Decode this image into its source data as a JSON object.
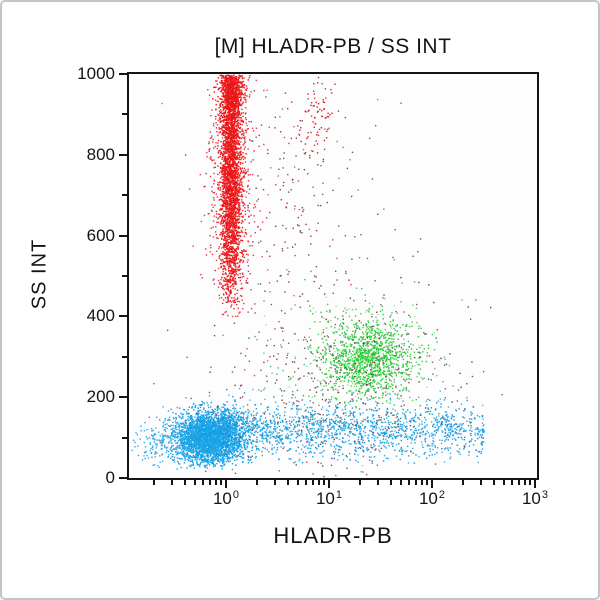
{
  "window": {
    "background": "#ffffff",
    "frame_border_color": "#c4c5cb"
  },
  "chart_data": {
    "type": "scatter",
    "subtype": "flow-cytometry-dot-plot",
    "title": "[M] HLADR-PB / SS INT",
    "xlabel": "HLADR-PB",
    "ylabel": "SS INT",
    "axis_color": "#141414",
    "x_scale": "log",
    "x_range_log10": [
      -0.942,
      3.02
    ],
    "x_ticks": [
      {
        "base": "10",
        "exp": 0
      },
      {
        "base": "10",
        "exp": 1
      },
      {
        "base": "10",
        "exp": 2
      },
      {
        "base": "10",
        "exp": 3
      }
    ],
    "y_scale": "linear",
    "y_range": [
      0,
      1000
    ],
    "y_major_ticks": [
      0,
      200,
      400,
      600,
      800,
      1000
    ],
    "y_tick_labels": [
      "0",
      "200",
      "400",
      "600",
      "800",
      "1000"
    ],
    "y_minor_ticks": [
      100,
      300,
      500,
      700,
      900
    ],
    "grid": false,
    "legend": "none",
    "populations": [
      {
        "name": "granulocytes-red-core",
        "color": "#ee1515",
        "count": 2400,
        "x": {
          "mean": 0.04,
          "sigma": 0.05
        },
        "y": {
          "mean": 760,
          "sigma": 170
        },
        "y_clip": [
          425,
          1000
        ]
      },
      {
        "name": "granulocytes-red-top",
        "color": "#ee1515",
        "count": 600,
        "x": {
          "mean": 0.05,
          "sigma": 0.06
        },
        "y": {
          "mean": 965,
          "sigma": 45
        },
        "y_clip": [
          840,
          1000
        ]
      },
      {
        "name": "granulocytes-red-halo",
        "color": "#e52030",
        "count": 700,
        "alpha": 0.9,
        "x": {
          "mean": 0.04,
          "sigma": 0.105
        },
        "y": {
          "mean": 720,
          "sigma": 195
        },
        "y_clip": [
          400,
          1000
        ]
      },
      {
        "name": "red-satellite-cluster",
        "color": "#e01a25",
        "count": 70,
        "x": {
          "mean": 0.86,
          "sigma": 0.09
        },
        "y": {
          "mean": 885,
          "sigma": 55
        }
      },
      {
        "name": "red-sparse-mid",
        "colors": [
          "#e01a25",
          "#8a1a28",
          "#5a3038"
        ],
        "count": 130,
        "alpha": 0.85,
        "x": {
          "mean": 0.5,
          "sigma": 0.33
        },
        "y": {
          "mean": 740,
          "sigma": 190
        }
      },
      {
        "name": "monocytes-green-core",
        "color": "#2ccc3a",
        "count": 1000,
        "x": {
          "mean": 1.37,
          "sigma": 0.21
        },
        "y": {
          "mean": 297,
          "sigma": 46
        },
        "y_clip": [
          170,
          430
        ]
      },
      {
        "name": "monocytes-green-halo",
        "colors": [
          "#2ccc3a",
          "#7fe08a",
          "#24b933"
        ],
        "count": 330,
        "alpha": 0.8,
        "x": {
          "mean": 1.37,
          "sigma": 0.36
        },
        "y": {
          "mean": 300,
          "sigma": 75
        }
      },
      {
        "name": "lymphocytes-blue-core",
        "color": "#15a0e6",
        "count": 3000,
        "x": {
          "mean": -0.17,
          "sigma": 0.155
        },
        "y": {
          "mean": 102,
          "sigma": 31
        },
        "y_clip": [
          22,
          215
        ]
      },
      {
        "name": "lymphocytes-blue-left-tail",
        "color": "#2fabe8",
        "count": 500,
        "x": {
          "mean": -0.42,
          "sigma": 0.25
        },
        "y": {
          "mean": 92,
          "sigma": 28
        },
        "y_clip": [
          20,
          190
        ]
      },
      {
        "name": "blue-band-right",
        "colors": [
          "#15a0e6",
          "#3db4ea",
          "#1790d6"
        ],
        "count": 1700,
        "x": {
          "band": [
            -0.05,
            2.5,
            1.25
          ]
        },
        "y": {
          "mean": 120,
          "sigma": 34
        },
        "y_clip": [
          35,
          225
        ]
      },
      {
        "name": "debris-dark-mid",
        "colors": [
          "#6b1620",
          "#474747",
          "#7a2a5a",
          "#a03040",
          "#27a07c"
        ],
        "count": 480,
        "alpha": 0.85,
        "x": {
          "mean": 1.15,
          "sigma": 0.6
        },
        "y": {
          "mean": 255,
          "sigma": 130
        }
      },
      {
        "name": "debris-dark-top",
        "colors": [
          "#6b1620",
          "#3f3f3f",
          "#c04040"
        ],
        "count": 130,
        "alpha": 0.8,
        "x": {
          "mean": 0.75,
          "sigma": 0.45
        },
        "y": {
          "mean": 700,
          "sigma": 185
        }
      }
    ]
  }
}
